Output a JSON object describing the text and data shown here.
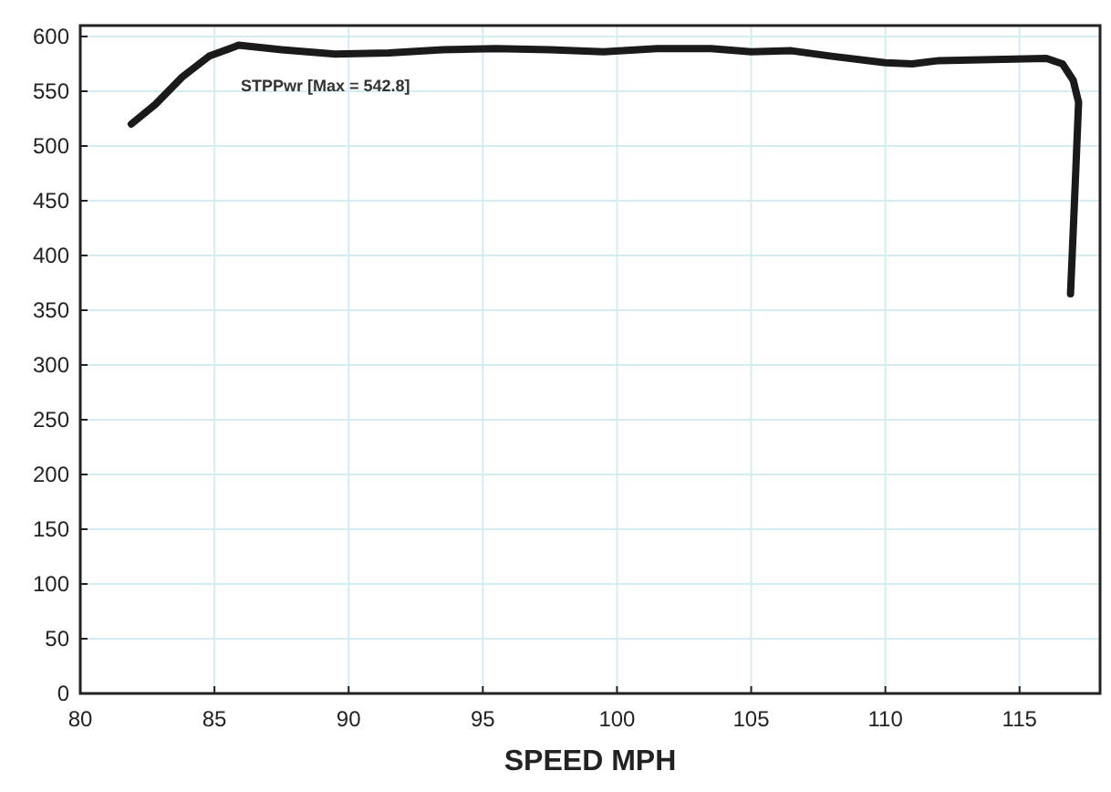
{
  "chart_data": {
    "type": "line",
    "xlabel": "SPEED MPH",
    "xlim": [
      80,
      118
    ],
    "xticks": [
      80,
      85,
      90,
      95,
      100,
      105,
      110,
      115
    ],
    "ylim": [
      0,
      610
    ],
    "yticks": [
      0,
      50,
      100,
      150,
      200,
      250,
      300,
      350,
      400,
      450,
      500,
      550,
      600
    ],
    "grid": true,
    "marker": "none",
    "line_style": "solid",
    "series": [
      {
        "name": "STPPwr [Max = 542.8]",
        "color": "#1a1a1a",
        "x": [
          81.9,
          82.8,
          83.8,
          84.8,
          85.9,
          87.5,
          89.5,
          91.5,
          93.5,
          95.5,
          97.5,
          99.5,
          101.5,
          103.5,
          105,
          106.5,
          108,
          110,
          111,
          112,
          114,
          116,
          116.6,
          117,
          117.2,
          117.1,
          116.9
        ],
        "values": [
          520,
          538,
          563,
          582,
          592,
          588,
          584,
          585,
          588,
          589,
          588,
          586,
          589,
          589,
          586,
          587,
          582,
          576,
          575,
          578,
          579,
          580,
          575,
          560,
          540,
          480,
          365
        ]
      }
    ]
  }
}
